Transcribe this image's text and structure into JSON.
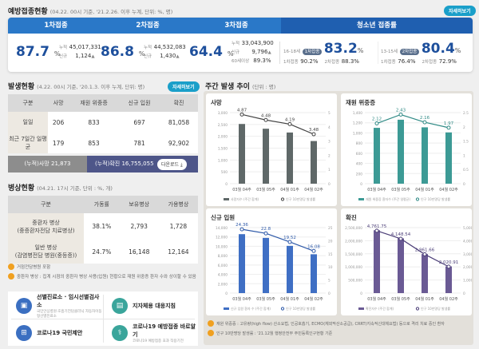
{
  "vaccination": {
    "title": "예방접종현황",
    "subtitle": "(04.22. 00시 기준, '21.2.26. 이후 누계, 단위: %, 명)",
    "detail": "자세히보기",
    "doses": [
      {
        "label": "1차접종",
        "rate": "87.7",
        "unit": "%",
        "cum_label": "누적",
        "cum": "45,017,331",
        "new_label": "신규",
        "new": "1,124"
      },
      {
        "label": "2차접종",
        "rate": "86.8",
        "unit": "%",
        "cum_label": "누적",
        "cum": "44,532,083",
        "new_label": "신규",
        "new": "1,430"
      },
      {
        "label": "3차접종",
        "rate": "64.4",
        "unit": "%",
        "cum_label": "누적",
        "cum": "33,043,900",
        "new_label": "신규",
        "new": "9,796",
        "sixty_label": "60세이상",
        "sixty": "89.3%"
      }
    ],
    "youth": {
      "label": "청소년 접종률",
      "groups": [
        {
          "age": "16-18세",
          "badge": "1차접종",
          "rate": "83.2",
          "unit": "%",
          "d1_label": "1차접종",
          "d1": "90.2%",
          "d2_label": "2차접종",
          "d2": "88.3%"
        },
        {
          "age": "13-15세",
          "badge": "2차접종",
          "rate": "80.4",
          "unit": "%",
          "d1_label": "1차접종",
          "d1": "76.4%",
          "d2_label": "2차접종",
          "d2": "72.9%"
        }
      ]
    }
  },
  "occurrence": {
    "title": "발생현황",
    "subtitle": "(4.22. 00시 기준, '20.1.3. 이후 누계, 단위: 명)",
    "detail": "자세히보기",
    "headers": [
      "구분",
      "사망",
      "재원 위중증",
      "신규 입원",
      "확진"
    ],
    "rows": [
      [
        "일일",
        "206",
        "833",
        "697",
        "81,058"
      ],
      [
        "최근 7일간 일평균",
        "179",
        "853",
        "781",
        "92,902"
      ]
    ],
    "cum_death_label": "(누적)사망",
    "cum_death": "21,873",
    "cum_conf_label": "(누적)확진",
    "cum_conf": "16,755,055",
    "download": "다운로드 ⤓"
  },
  "beds": {
    "title": "병상현황",
    "subtitle": "(04.21. 17시 기준, 단위 : %, 개)",
    "headers": [
      "구분",
      "가동률",
      "보유병상",
      "가용병상"
    ],
    "rows": [
      [
        "중환자 병상\n(중증환자전담 치료병상)",
        "38.1%",
        "2,793",
        "1,728"
      ],
      [
        "일반 병상\n(감염병전담 병원(중등증))",
        "24.7%",
        "16,148",
        "12,164"
      ]
    ],
    "notes": [
      "거점전담병원 포함",
      "중환자 병상 : 집계 시점의 중환자 병상 사용(입원) 현황으로 재원 위중증 환자 수와 상이할 수 있음"
    ]
  },
  "links": [
    {
      "title": "선별진료소 · 임시선별검사소",
      "sub": "국민안심병원·호흡기전담클리닉 자동차이동형선별진료소",
      "icon": "clipboard-icon",
      "color": "#3b6fc1"
    },
    {
      "title": "지자체용 대응지침",
      "sub": "",
      "icon": "building-icon",
      "color": "#3aa59b"
    },
    {
      "title": "코로나19 국민제안",
      "sub": "",
      "icon": "hospital-icon",
      "color": "#3b6fc1"
    },
    {
      "title": "코로나19 예방접종 바로알기",
      "sub": "코로나19 예방접종 효과 작용기전",
      "icon": "stethoscope-icon",
      "color": "#3aa59b"
    }
  ],
  "weekly": {
    "title": "주간 발생 추이",
    "subtitle": "(단위 : 명)",
    "footnotes": [
      "재원 위중증 : 고유량(high flow) 산소요법, 인공호흡기, ECMO(체외막산소공급), CRRT(지속적신대체요법) 등으로 격리 치료 중인 환자",
      "인구 10만명당 발생률 : '21.12월 행정안전부 주민등록인구현황 기준"
    ]
  },
  "chart_data": [
    {
      "type": "bar+line",
      "title": "사망",
      "categories": [
        "03월 04주",
        "03월 05주",
        "04월 01주",
        "04월 02주"
      ],
      "bar_values": [
        2520,
        2320,
        2160,
        1800
      ],
      "line_values": [
        4.87,
        4.48,
        4.19,
        3.48
      ],
      "ylim": [
        0,
        3000
      ],
      "yticks": [
        "0",
        "500",
        "1,000",
        "1,500",
        "2,000",
        "2,500",
        "3,000"
      ],
      "y2lim": [
        0,
        5
      ],
      "y2ticks": [
        "0",
        "1",
        "2",
        "3",
        "4",
        "5"
      ],
      "bar_color": "#5f6868",
      "line_color": "#444444",
      "legend": [
        "사망자수 (주간 합계)",
        "인구 10만명당 발생률"
      ]
    },
    {
      "type": "bar+line",
      "title": "재원 위중증",
      "categories": [
        "03월 04주",
        "03월 05주",
        "04월 01주",
        "04월 02주"
      ],
      "bar_values": [
        1100,
        1260,
        1110,
        1010
      ],
      "line_values": [
        2.12,
        2.43,
        2.16,
        1.97
      ],
      "ylim": [
        0,
        1400
      ],
      "yticks": [
        "0",
        "200",
        "400",
        "600",
        "800",
        "1,000",
        "1,200",
        "1,400"
      ],
      "y2lim": [
        0,
        2.5
      ],
      "y2ticks": [
        "0",
        "0.5",
        "1",
        "1.5",
        "2",
        "2.5"
      ],
      "bar_color": "#3c9a95",
      "line_color": "#2f8a85",
      "legend": [
        "재원 위중증 환자수 (주간 일평균)",
        "인구 10만명당 발생률"
      ]
    },
    {
      "type": "bar+line",
      "title": "신규 입원",
      "categories": [
        "03월 04주",
        "03월 05주",
        "04월 01주",
        "04월 02주"
      ],
      "bar_values": [
        12600,
        11800,
        10100,
        8300
      ],
      "line_values": [
        24.36,
        22.8,
        19.52,
        16.08
      ],
      "ylim": [
        0,
        14000
      ],
      "yticks": [
        "0",
        "2,000",
        "4,000",
        "6,000",
        "8,000",
        "10,000",
        "12,000",
        "14,000"
      ],
      "y2lim": [
        0,
        25
      ],
      "y2ticks": [
        "0",
        "5",
        "10",
        "15",
        "20",
        "25"
      ],
      "bar_color": "#3f6fc4",
      "line_color": "#2c58a8",
      "legend": [
        "신규 입원 환자 수 (주간 합계)",
        "인구 10만명당 발생률"
      ]
    },
    {
      "type": "bar+line",
      "title": "확진",
      "categories": [
        "03월 04주",
        "03월 05주",
        "04월 01주",
        "04월 02주"
      ],
      "bar_values": [
        2400000,
        2090000,
        1490000,
        1020000
      ],
      "line_values": [
        4761.75,
        4148.54,
        2961.66,
        2020.91
      ],
      "line_labels": [
        "4,761.75",
        "4,148.54",
        "2,961.66",
        "2,020.91"
      ],
      "ylim": [
        0,
        2500000
      ],
      "yticks": [
        "0",
        "500,000",
        "1,000,000",
        "1,500,000",
        "2,000,000",
        "2,500,000"
      ],
      "y2lim": [
        0,
        5000
      ],
      "y2ticks": [
        "0",
        "1,000",
        "2,000",
        "3,000",
        "4,000",
        "5,000"
      ],
      "bar_color": "#6a5a94",
      "line_color": "#4c3f78",
      "legend": [
        "확진자수 (주간 합계)",
        "인구 10만명당 발생률"
      ]
    }
  ]
}
